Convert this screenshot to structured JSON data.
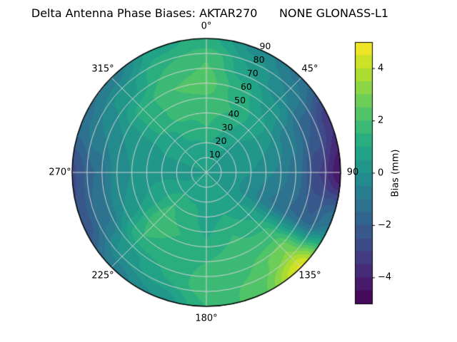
{
  "title": "Delta Antenna Phase Biases: AKTAR270      NONE GLONASS-L1",
  "chart_data": {
    "type": "polar_contour",
    "title": "Delta Antenna Phase Biases: AKTAR270      NONE GLONASS-L1",
    "angle_unit": "degrees_clockwise_from_north",
    "angle_labels": [
      {
        "angle": 0,
        "label": "0°"
      },
      {
        "angle": 45,
        "label": "45°"
      },
      {
        "angle": 90,
        "label": "90"
      },
      {
        "angle": 135,
        "label": "135°"
      },
      {
        "angle": 180,
        "label": "180°"
      },
      {
        "angle": 225,
        "label": "225°"
      },
      {
        "angle": 270,
        "label": "270°"
      },
      {
        "angle": 315,
        "label": "315°"
      }
    ],
    "radial_ticks": {
      "values": [
        10,
        20,
        30,
        40,
        50,
        60,
        70,
        80,
        90
      ],
      "label_angle_deg": 25,
      "max": 90
    },
    "colorbar": {
      "label": "Bias (mm)",
      "min": -5,
      "max": 5,
      "level_step": 0.5,
      "colormap": "viridis",
      "ticks": [
        {
          "value": 4,
          "label": "4"
        },
        {
          "value": 2,
          "label": "2"
        },
        {
          "value": 0,
          "label": "0"
        },
        {
          "value": -2,
          "label": "−2"
        },
        {
          "value": -4,
          "label": "−4"
        }
      ]
    },
    "grid": {
      "spoke_step_deg": 45,
      "ring_step": 10,
      "rings": 9
    },
    "azimuths_deg": [
      0,
      22.5,
      45,
      67.5,
      90,
      112.5,
      135,
      157.5,
      180,
      202.5,
      225,
      247.5,
      270,
      292.5,
      315,
      337.5
    ],
    "radii_norm": [
      0,
      0.1667,
      0.3333,
      0.5,
      0.6667,
      0.8333,
      1
    ],
    "values_mm": [
      [
        0.5,
        0.8,
        1.5,
        1.8,
        2.2,
        2.0,
        1.2
      ],
      [
        0.5,
        0.6,
        1.0,
        1.5,
        1.2,
        0.5,
        -0.2
      ],
      [
        0.5,
        0.4,
        0.5,
        0.8,
        0.3,
        -0.5,
        -1.2
      ],
      [
        0.5,
        0.3,
        0.2,
        0.0,
        -0.8,
        -2.0,
        -3.4
      ],
      [
        0.5,
        0.2,
        0.0,
        -0.5,
        -1.2,
        -3.0,
        -4.4
      ],
      [
        0.5,
        0.3,
        -0.2,
        -1.0,
        -1.5,
        -2.0,
        -1.0
      ],
      [
        0.5,
        0.5,
        0.5,
        1.0,
        1.8,
        3.0,
        4.6
      ],
      [
        0.5,
        0.7,
        1.0,
        1.5,
        1.8,
        2.0,
        2.2
      ],
      [
        0.5,
        0.7,
        0.8,
        1.0,
        1.5,
        1.8,
        1.5
      ],
      [
        0.5,
        0.8,
        1.2,
        1.5,
        1.2,
        1.0,
        0.0
      ],
      [
        0.5,
        0.8,
        1.5,
        1.8,
        1.5,
        0.3,
        -0.8
      ],
      [
        0.5,
        0.5,
        0.8,
        0.5,
        0.0,
        -1.2,
        -2.4
      ],
      [
        0.5,
        0.4,
        0.3,
        0.2,
        -0.3,
        -1.5,
        -2.6
      ],
      [
        0.5,
        0.5,
        0.5,
        0.3,
        0.0,
        -0.5,
        -1.2
      ],
      [
        0.5,
        0.6,
        0.8,
        1.2,
        1.2,
        0.3,
        -0.8
      ],
      [
        0.5,
        0.7,
        1.2,
        1.8,
        2.0,
        1.5,
        0.8
      ]
    ]
  },
  "colors": {
    "grid_line": "#d2d2d2",
    "outline": "#000000",
    "viridis_stops": [
      [
        0.0,
        "#440154"
      ],
      [
        0.1,
        "#482374"
      ],
      [
        0.2,
        "#414487"
      ],
      [
        0.3,
        "#355f8d"
      ],
      [
        0.4,
        "#2a788e"
      ],
      [
        0.5,
        "#21918c"
      ],
      [
        0.6,
        "#22a884"
      ],
      [
        0.7,
        "#44bf70"
      ],
      [
        0.8,
        "#7ad151"
      ],
      [
        0.9,
        "#bddf26"
      ],
      [
        1.0,
        "#fde725"
      ]
    ]
  }
}
